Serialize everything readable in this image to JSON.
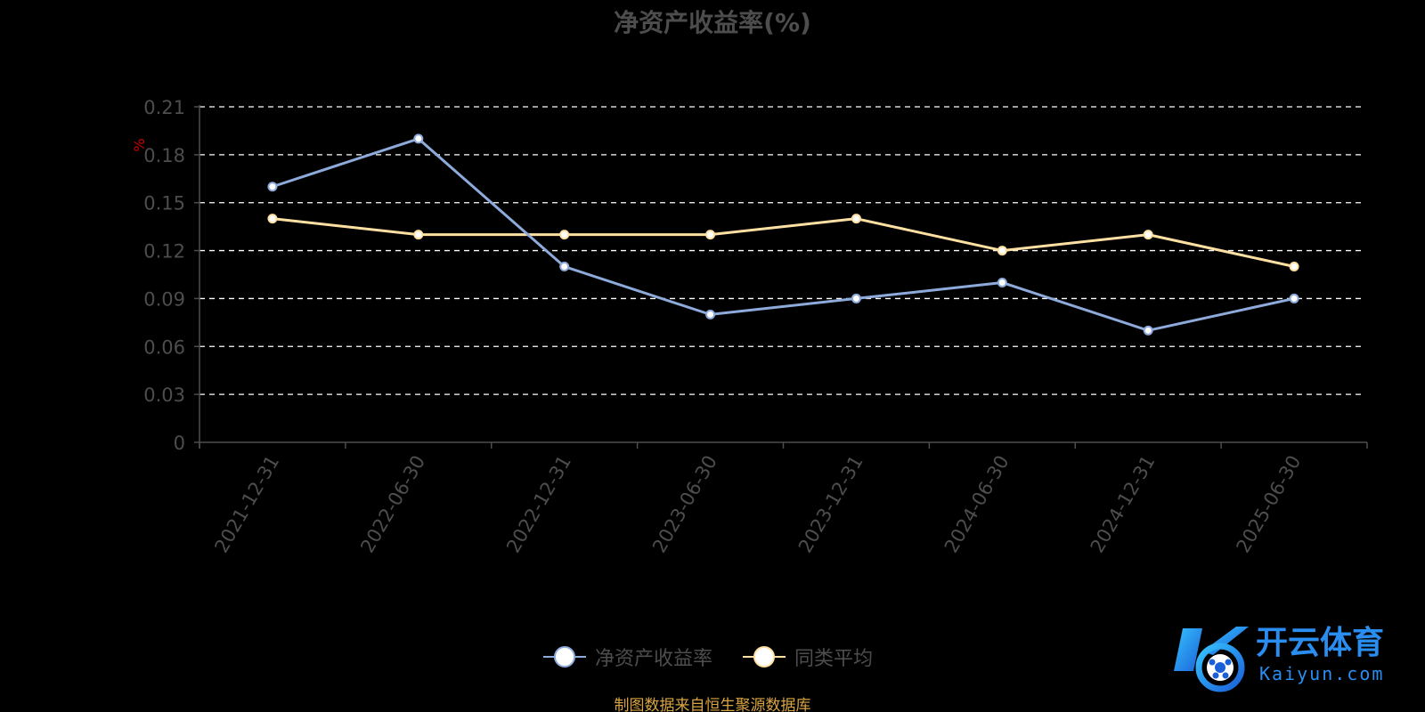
{
  "chart_data": {
    "type": "line",
    "title": "净资产收益率(%)",
    "ylabel": "%",
    "xlabel": "",
    "categories": [
      "2021-12-31",
      "2022-06-30",
      "2022-12-31",
      "2023-06-30",
      "2023-12-31",
      "2024-06-30",
      "2024-12-31",
      "2025-06-30"
    ],
    "ylim": [
      0,
      0.21
    ],
    "yticks": [
      "0",
      "0.03",
      "0.06",
      "0.09",
      "0.12",
      "0.15",
      "0.18",
      "0.21"
    ],
    "grid": true,
    "legend_position": "bottom",
    "series": [
      {
        "name": "净资产收益率",
        "values": [
          0.16,
          0.19,
          0.11,
          0.08,
          0.09,
          0.1,
          0.07,
          0.09
        ],
        "color": "#8eaadb"
      },
      {
        "name": "同类平均",
        "values": [
          0.14,
          0.13,
          0.13,
          0.13,
          0.14,
          0.12,
          0.13,
          0.11
        ],
        "color": "#ffe0a3"
      }
    ]
  },
  "source_note": "制图数据来自恒生聚源数据库",
  "logo": {
    "text": "开云体育",
    "subtext": "Kaiyun.com"
  },
  "colors": {
    "background": "#000000",
    "axis_text": "#4d4d4d",
    "grid": "#ffffff",
    "ylabel": "#cc0000",
    "source": "#d9a440",
    "logo": "#2a8df0"
  }
}
